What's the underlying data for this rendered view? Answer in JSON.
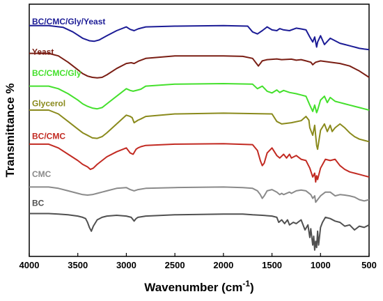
{
  "chart_data": {
    "type": "line",
    "xlabel": "Wavenumber (cm",
    "xlabel_superscript": "-1",
    "xlabel_suffix": ")",
    "ylabel": "Transmittance %",
    "xlim": [
      4000,
      500
    ],
    "x_reversed": true,
    "y_ticks_shown": false,
    "grid": false,
    "x_ticks": [
      4000,
      3500,
      3000,
      2500,
      2000,
      1500,
      1000,
      500
    ],
    "x_tick_labels": [
      "4000",
      "3500",
      "3000",
      "2500",
      "2000",
      "1500",
      "1000",
      "500"
    ],
    "ylim": [
      0,
      100
    ],
    "series": [
      {
        "name": "BC/CMC/Gly/Yeast",
        "color": "#1c1c96",
        "label_y": 92,
        "x": [
          4000,
          3800,
          3650,
          3550,
          3450,
          3380,
          3330,
          3280,
          3200,
          3100,
          3000,
          2960,
          2920,
          2880,
          2850,
          2800,
          2500,
          2000,
          1750,
          1700,
          1650,
          1600,
          1550,
          1500,
          1450,
          1420,
          1380,
          1320,
          1250,
          1200,
          1150,
          1110,
          1080,
          1060,
          1040,
          1030,
          1000,
          960,
          900,
          850,
          800,
          750,
          700,
          650,
          600,
          550,
          500
        ],
        "y": [
          91.5,
          91.5,
          90.8,
          89.0,
          86.5,
          85.5,
          85.3,
          85.8,
          87.5,
          89.5,
          91.0,
          90.0,
          89.5,
          90.2,
          90.5,
          91.0,
          91.3,
          91.5,
          91.3,
          89.0,
          88.2,
          89.5,
          91.0,
          89.8,
          89.5,
          90.3,
          89.8,
          89.5,
          90.5,
          90.2,
          89.8,
          87.0,
          85.0,
          87.0,
          83.0,
          85.0,
          87.5,
          84.0,
          86.5,
          85.5,
          84.5,
          84.0,
          83.5,
          83.0,
          82.5,
          82.2,
          82.0
        ]
      },
      {
        "name": "Yeast",
        "color": "#7a1e14",
        "label_y": 80,
        "x": [
          4000,
          3800,
          3700,
          3600,
          3500,
          3450,
          3400,
          3350,
          3300,
          3250,
          3200,
          3100,
          3000,
          2950,
          2920,
          2870,
          2800,
          2500,
          2000,
          1800,
          1700,
          1660,
          1640,
          1600,
          1550,
          1450,
          1400,
          1300,
          1250,
          1200,
          1150,
          1100,
          1080,
          1050,
          1000,
          900,
          800,
          700,
          600,
          500
        ],
        "y": [
          80.5,
          80.5,
          79.5,
          77.0,
          74.0,
          72.5,
          71.5,
          71.0,
          70.8,
          71.0,
          72.0,
          74.5,
          76.5,
          76.8,
          76.5,
          77.5,
          78.5,
          79.5,
          79.5,
          79.3,
          78.5,
          76.5,
          75.5,
          77.5,
          78.0,
          78.3,
          78.0,
          78.2,
          77.8,
          78.0,
          77.5,
          77.0,
          76.0,
          77.0,
          77.5,
          77.0,
          76.5,
          75.5,
          73.5,
          71.0
        ]
      },
      {
        "name": "BC/CMC/Gly",
        "color": "#44e02c",
        "label_y": 71.5,
        "x": [
          4000,
          3800,
          3700,
          3600,
          3500,
          3450,
          3400,
          3350,
          3300,
          3250,
          3200,
          3100,
          3000,
          2960,
          2930,
          2880,
          2850,
          2800,
          2500,
          2000,
          1700,
          1650,
          1600,
          1550,
          1500,
          1450,
          1420,
          1380,
          1320,
          1250,
          1200,
          1150,
          1110,
          1080,
          1060,
          1040,
          1030,
          1000,
          960,
          930,
          900,
          850,
          800,
          750,
          700,
          650,
          600,
          550,
          500
        ],
        "y": [
          67.5,
          67.5,
          66.5,
          64.5,
          62.0,
          60.5,
          59.5,
          58.8,
          58.5,
          59.0,
          60.5,
          63.5,
          66.5,
          65.8,
          65.5,
          66.0,
          66.3,
          67.5,
          68.3,
          68.5,
          68.3,
          66.5,
          67.5,
          65.5,
          64.8,
          66.0,
          65.0,
          65.8,
          65.0,
          64.5,
          64.0,
          63.5,
          60.0,
          57.5,
          60.0,
          57.0,
          58.0,
          62.0,
          63.5,
          61.0,
          63.0,
          61.5,
          61.0,
          60.5,
          60.0,
          59.5,
          59.0,
          58.5,
          58.0
        ]
      },
      {
        "name": "Glycerol",
        "color": "#8a8a1c",
        "label_y": 59.5,
        "x": [
          4000,
          3800,
          3700,
          3600,
          3500,
          3450,
          3400,
          3350,
          3300,
          3250,
          3200,
          3100,
          3000,
          2960,
          2940,
          2920,
          2880,
          2850,
          2800,
          2500,
          2000,
          1500,
          1450,
          1400,
          1300,
          1200,
          1150,
          1120,
          1110,
          1080,
          1060,
          1040,
          1030,
          1000,
          960,
          930,
          900,
          880,
          850,
          800,
          750,
          700,
          650,
          600,
          550,
          500
        ],
        "y": [
          58.0,
          58.0,
          56.5,
          53.5,
          50.5,
          49.0,
          48.0,
          47.0,
          46.8,
          47.5,
          49.0,
          52.5,
          56.0,
          55.5,
          55.0,
          53.0,
          54.0,
          54.5,
          55.5,
          56.5,
          56.8,
          56.5,
          53.5,
          52.5,
          53.0,
          53.8,
          55.5,
          54.0,
          51.0,
          48.0,
          52.0,
          44.0,
          42.5,
          50.0,
          52.5,
          49.5,
          52.0,
          49.5,
          51.0,
          52.5,
          51.0,
          49.0,
          47.5,
          46.5,
          46.0,
          45.5
        ]
      },
      {
        "name": "BC/CMC",
        "color": "#c22a22",
        "label_y": 46.5,
        "x": [
          4000,
          3800,
          3700,
          3600,
          3500,
          3450,
          3400,
          3370,
          3340,
          3300,
          3250,
          3200,
          3100,
          3000,
          2960,
          2930,
          2900,
          2880,
          2850,
          2800,
          2500,
          2000,
          1700,
          1650,
          1620,
          1600,
          1580,
          1550,
          1500,
          1450,
          1420,
          1380,
          1350,
          1320,
          1300,
          1250,
          1200,
          1150,
          1110,
          1080,
          1060,
          1050,
          1040,
          1030,
          1000,
          950,
          900,
          850,
          800,
          750,
          700,
          650,
          600,
          550,
          500
        ],
        "y": [
          44.5,
          44.5,
          43.0,
          40.5,
          38.0,
          36.5,
          35.5,
          34.5,
          35.0,
          36.5,
          38.0,
          39.5,
          41.5,
          43.0,
          41.0,
          40.5,
          42.5,
          43.0,
          43.5,
          44.0,
          44.5,
          44.7,
          44.3,
          42.0,
          38.0,
          36.0,
          37.0,
          41.0,
          43.0,
          40.0,
          39.0,
          40.5,
          39.0,
          40.5,
          39.0,
          40.0,
          38.5,
          38.0,
          35.0,
          31.5,
          33.0,
          29.5,
          32.0,
          30.5,
          35.0,
          38.5,
          38.0,
          38.5,
          36.0,
          34.5,
          33.5,
          33.0,
          32.5,
          32.0,
          31.5
        ]
      },
      {
        "name": "CMC",
        "color": "#8a8a8a",
        "label_y": 31.5,
        "x": [
          4000,
          3800,
          3700,
          3600,
          3500,
          3450,
          3400,
          3350,
          3300,
          3250,
          3200,
          3100,
          3000,
          2960,
          2920,
          2880,
          2800,
          2500,
          2000,
          1800,
          1700,
          1650,
          1620,
          1600,
          1580,
          1550,
          1500,
          1450,
          1420,
          1400,
          1380,
          1320,
          1300,
          1250,
          1200,
          1150,
          1100,
          1080,
          1060,
          1050,
          1030,
          1000,
          950,
          900,
          850,
          800,
          750,
          700,
          650,
          600,
          550,
          500
        ],
        "y": [
          27.5,
          27.5,
          27.0,
          26.0,
          25.0,
          24.5,
          24.3,
          24.5,
          25.0,
          25.5,
          26.0,
          27.0,
          27.3,
          26.5,
          26.0,
          26.5,
          27.0,
          27.3,
          27.5,
          27.3,
          27.0,
          26.0,
          24.5,
          23.0,
          24.0,
          26.0,
          26.5,
          25.5,
          24.5,
          25.0,
          24.5,
          25.5,
          25.0,
          26.0,
          26.3,
          26.0,
          24.5,
          23.0,
          24.0,
          21.5,
          22.5,
          24.0,
          25.5,
          25.5,
          24.0,
          24.5,
          24.3,
          24.0,
          23.5,
          22.5,
          22.0,
          22.5
        ]
      },
      {
        "name": "BC",
        "color": "#505050",
        "label_y": 20,
        "x": [
          4000,
          3800,
          3700,
          3600,
          3500,
          3450,
          3420,
          3400,
          3380,
          3360,
          3340,
          3300,
          3250,
          3200,
          3100,
          3000,
          2950,
          2920,
          2900,
          2880,
          2800,
          2500,
          2000,
          1800,
          1700,
          1600,
          1500,
          1450,
          1430,
          1400,
          1370,
          1340,
          1320,
          1280,
          1250,
          1200,
          1160,
          1130,
          1110,
          1100,
          1080,
          1070,
          1060,
          1050,
          1040,
          1030,
          1020,
          1000,
          980,
          950,
          900,
          850,
          800,
          750,
          700,
          650,
          600,
          550,
          500
        ],
        "y": [
          17.0,
          17.0,
          16.8,
          16.5,
          16.0,
          15.5,
          15.0,
          13.5,
          11.5,
          10.0,
          12.0,
          14.5,
          15.5,
          16.0,
          16.3,
          16.0,
          15.5,
          14.0,
          15.0,
          15.5,
          16.0,
          16.5,
          16.8,
          16.8,
          16.5,
          16.3,
          16.0,
          15.5,
          13.5,
          14.5,
          13.0,
          14.5,
          12.5,
          13.5,
          13.0,
          14.5,
          10.5,
          12.5,
          7.5,
          11.0,
          4.5,
          8.0,
          2.5,
          6.0,
          3.5,
          10.0,
          4.5,
          11.5,
          13.5,
          15.5,
          15.0,
          14.0,
          13.5,
          12.0,
          12.5,
          10.5,
          12.0,
          11.5,
          12.5
        ]
      }
    ]
  }
}
